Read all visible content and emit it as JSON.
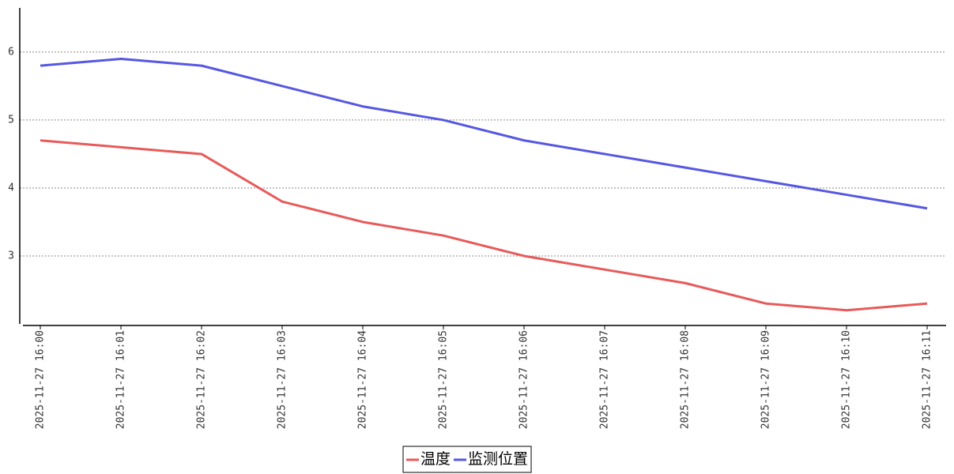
{
  "chart_data": {
    "type": "line",
    "categories": [
      "2025-11-27 16:00",
      "2025-11-27 16:01",
      "2025-11-27 16:02",
      "2025-11-27 16:03",
      "2025-11-27 16:04",
      "2025-11-27 16:05",
      "2025-11-27 16:06",
      "2025-11-27 16:07",
      "2025-11-27 16:08",
      "2025-11-27 16:09",
      "2025-11-27 16:10",
      "2025-11-27 16:11"
    ],
    "series": [
      {
        "name": "温度",
        "color": "#e85a5a",
        "values": [
          4.7,
          4.6,
          4.5,
          3.8,
          3.5,
          3.3,
          3.0,
          2.8,
          2.6,
          2.3,
          2.2,
          2.3
        ]
      },
      {
        "name": "监测位置",
        "color": "#5657e2",
        "values": [
          5.8,
          5.9,
          5.8,
          5.5,
          5.2,
          5.0,
          4.7,
          4.5,
          4.3,
          4.1,
          3.9,
          3.7
        ]
      }
    ],
    "ylim": [
      2,
      6.65
    ],
    "yticks": [
      3,
      4,
      5,
      6
    ],
    "grid": true,
    "legend": "bottom"
  }
}
